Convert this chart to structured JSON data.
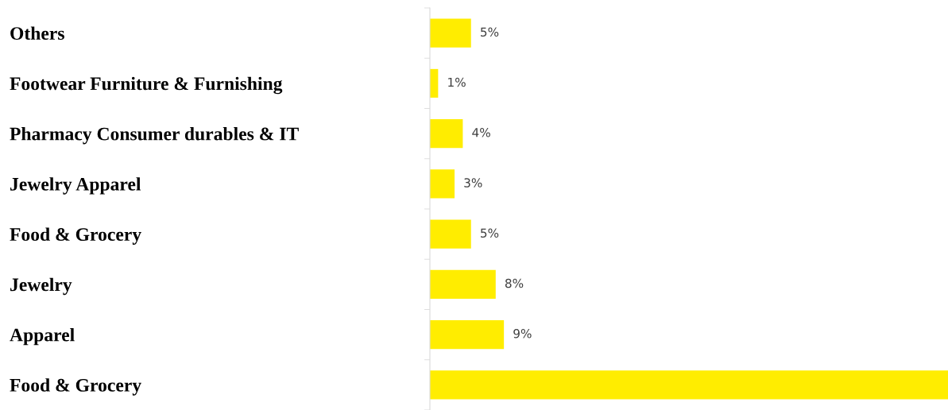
{
  "chart_data": {
    "type": "bar",
    "orientation": "horizontal",
    "categories": [
      "Others",
      "Footwear Furniture & Furnishing",
      "Pharmacy Consumer durables & IT",
      "Jewelry Apparel",
      "Food & Grocery",
      "Jewelry",
      "Apparel",
      "Food & Grocery"
    ],
    "values": [
      5,
      1,
      4,
      3,
      5,
      8,
      9,
      63
    ],
    "value_labels": [
      "5%",
      "1%",
      "4%",
      "3%",
      "5%",
      "8%",
      "9%",
      null
    ],
    "color": "#ffed00",
    "xlim": [
      0,
      63
    ],
    "grid": false,
    "legend": false
  }
}
